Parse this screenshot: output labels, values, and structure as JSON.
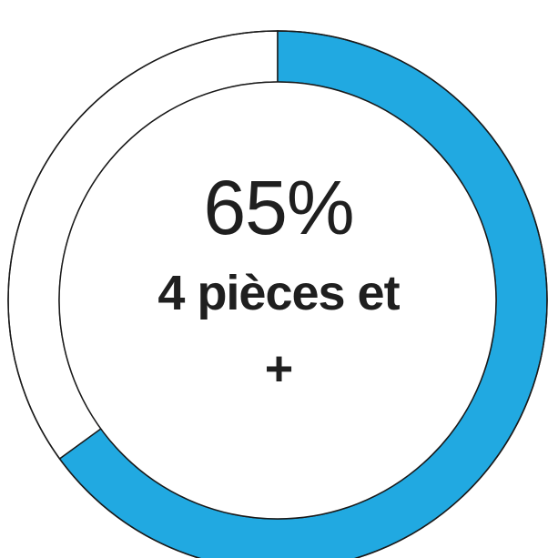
{
  "chart_data": {
    "type": "pie",
    "variant": "donut",
    "value_percent": 65,
    "remainder_percent": 35,
    "center_value_text": "65%",
    "center_label_lines": [
      "4 pièces et",
      "+"
    ],
    "title": "",
    "legend": "none",
    "colors": {
      "filled": "#21a9e1",
      "empty": "#ffffff",
      "stroke": "#1a1a1a",
      "text": "#1f1f1f"
    }
  }
}
